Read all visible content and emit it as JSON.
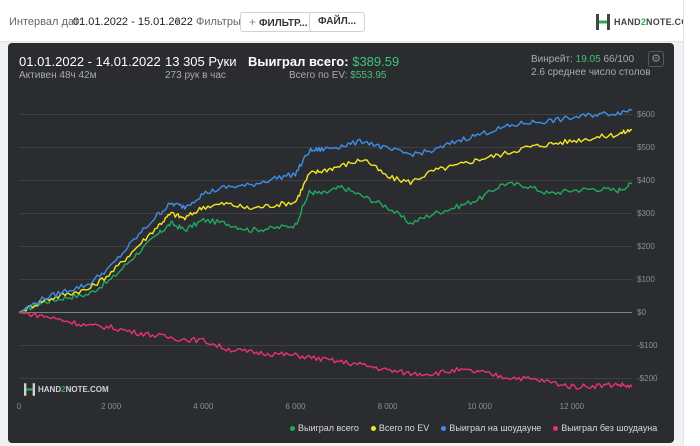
{
  "toolbar": {
    "interval_label": "Интервал дат:",
    "interval_value": "01.01.2022 - 15.01.2022",
    "filters_label": "Фильтры:",
    "filter_button": "ФИЛЬТР...",
    "file_button": "ФАЙЛ...",
    "logo_pre": "HAND",
    "logo_two": "2",
    "logo_post": "NOTE.COM"
  },
  "header": {
    "date_range": "01.01.2022 - 14.01.2022",
    "active": "Активен 48ч 42м",
    "hands": "13 305 Руки",
    "hands_per_hour": "273 рук в час",
    "won_label": "Выиграл всего:",
    "won_value": "$389.59",
    "ev_label": "Всего по EV:",
    "ev_value": "$553.95",
    "winrate_label": "Винрейт:",
    "winrate_value": "19.05",
    "winrate_rest": "66/100",
    "tables": "2.6 среднее число столов"
  },
  "colors": {
    "green": "#1faa5e",
    "yellow": "#f2e623",
    "blue": "#3d8ee8",
    "pink": "#e8336f"
  },
  "chart_data": {
    "type": "line",
    "xlim": [
      0,
      13305
    ],
    "ylim": [
      -250,
      650
    ],
    "yticks": [
      600,
      500,
      400,
      300,
      200,
      100,
      0,
      -100,
      -200
    ],
    "ytick_labels": [
      "$600",
      "$500",
      "$400",
      "$300",
      "$200",
      "$100",
      "$0",
      "-$100",
      "-$200"
    ],
    "xticks": [
      0,
      2000,
      4000,
      6000,
      8000,
      10000,
      12000
    ],
    "xtick_labels": [
      "0",
      "2 000",
      "4 000",
      "6 000",
      "8 000",
      "10 000",
      "12 000"
    ],
    "series": [
      {
        "name": "Выиграл всего",
        "color": "#1faa5e",
        "x": [
          0,
          500,
          1000,
          1500,
          2000,
          2500,
          3000,
          3300,
          3600,
          4000,
          4500,
          5000,
          5500,
          6000,
          6300,
          6600,
          7000,
          7500,
          8000,
          8500,
          9000,
          9500,
          10000,
          10500,
          11000,
          11500,
          12000,
          12500,
          13000,
          13305
        ],
        "y": [
          0,
          30,
          45,
          55,
          100,
          170,
          235,
          270,
          250,
          280,
          270,
          250,
          255,
          265,
          365,
          360,
          380,
          350,
          320,
          270,
          300,
          320,
          345,
          390,
          385,
          360,
          370,
          375,
          370,
          390
        ]
      },
      {
        "name": "Всего по EV",
        "color": "#f2e623",
        "x": [
          0,
          500,
          1000,
          1500,
          2000,
          2500,
          3000,
          3300,
          3600,
          4000,
          4500,
          5000,
          5500,
          6000,
          6300,
          6600,
          7000,
          7500,
          8000,
          8500,
          9000,
          9500,
          10000,
          10500,
          11000,
          11500,
          12000,
          12500,
          13000,
          13305
        ],
        "y": [
          0,
          35,
          55,
          70,
          120,
          190,
          260,
          300,
          285,
          320,
          330,
          315,
          325,
          335,
          420,
          430,
          445,
          465,
          410,
          395,
          430,
          445,
          465,
          480,
          500,
          510,
          520,
          530,
          540,
          554
        ]
      },
      {
        "name": "Выиграл на шоудауне",
        "color": "#3d8ee8",
        "x": [
          0,
          500,
          1000,
          1500,
          2000,
          2500,
          3000,
          3300,
          3600,
          4000,
          4500,
          5000,
          5500,
          6000,
          6300,
          6600,
          7000,
          7500,
          8000,
          8500,
          9000,
          9500,
          10000,
          10500,
          11000,
          11500,
          12000,
          12500,
          13000,
          13305
        ],
        "y": [
          0,
          40,
          65,
          85,
          140,
          220,
          295,
          330,
          320,
          360,
          380,
          385,
          405,
          420,
          490,
          495,
          505,
          520,
          495,
          480,
          490,
          520,
          540,
          560,
          575,
          580,
          590,
          600,
          605,
          615
        ]
      },
      {
        "name": "Выиграл без шоудауна",
        "color": "#e8336f",
        "x": [
          0,
          500,
          1000,
          1500,
          2000,
          2500,
          3000,
          3500,
          4000,
          4500,
          5000,
          5500,
          6000,
          6500,
          7000,
          7500,
          8000,
          8500,
          9000,
          9500,
          10000,
          10500,
          11000,
          11500,
          12000,
          12500,
          13000,
          13305
        ],
        "y": [
          0,
          -10,
          -25,
          -40,
          -45,
          -60,
          -70,
          -80,
          -85,
          -110,
          -120,
          -125,
          -130,
          -140,
          -150,
          -160,
          -175,
          -185,
          -185,
          -175,
          -180,
          -195,
          -200,
          -210,
          -225,
          -222,
          -218,
          -225
        ]
      }
    ],
    "legend_position": "bottom-right",
    "grid": true
  },
  "watermark": {
    "pre": "HAND",
    "two": "2",
    "post": "NOTE.COM"
  }
}
